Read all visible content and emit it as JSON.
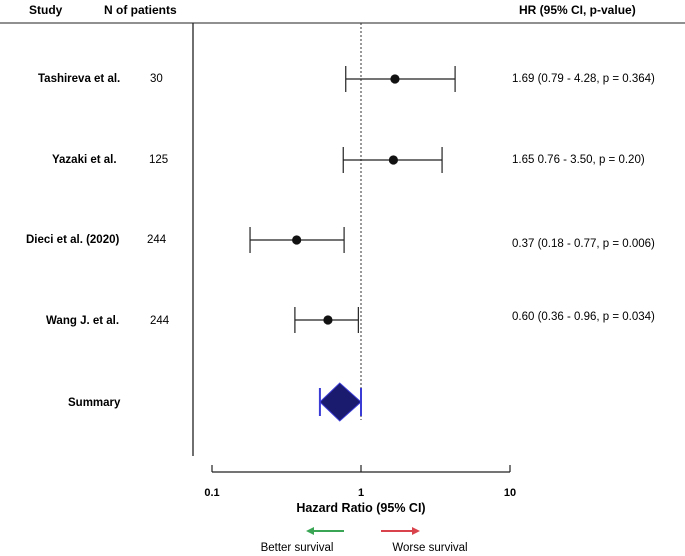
{
  "headers": {
    "study": "Study",
    "n": "N of patients",
    "hr": "HR (95% CI, p-value)"
  },
  "chart_data": {
    "type": "forest",
    "scale": "log",
    "xlim": [
      0.1,
      10
    ],
    "ticks": [
      {
        "value": 0.1,
        "label": "0.1"
      },
      {
        "value": 1,
        "label": "1"
      },
      {
        "value": 10,
        "label": "10"
      }
    ],
    "xlabel": "Hazard Ratio (95% CI)",
    "reference_line": 1,
    "studies": [
      {
        "name": "Tashireva et al.",
        "n": "30",
        "hr": 1.69,
        "lower": 0.79,
        "upper": 4.28,
        "label": "1.69 (0.79 - 4.28, p = 0.364)"
      },
      {
        "name": "Yazaki et al.",
        "n": "125",
        "hr": 1.65,
        "lower": 0.76,
        "upper": 3.5,
        "label": "1.65  0.76 - 3.50, p = 0.20)"
      },
      {
        "name": "Dieci et al. (2020)",
        "n": "244",
        "hr": 0.37,
        "lower": 0.18,
        "upper": 0.77,
        "label": "0.37 (0.18 - 0.77, p = 0.006)"
      },
      {
        "name": "Wang J. et al.",
        "n": "244",
        "hr": 0.6,
        "lower": 0.36,
        "upper": 0.96,
        "label": "0.60 (0.36 - 0.96, p = 0.034)"
      }
    ],
    "summary": {
      "name": "Summary",
      "hr": 0.72,
      "lower": 0.53,
      "upper": 1.0
    },
    "legend": {
      "left": {
        "label": "Better survival",
        "color": "#3aa655",
        "direction": "left"
      },
      "right": {
        "label": "Worse survival",
        "color": "#d9434b",
        "direction": "right"
      }
    }
  },
  "colors": {
    "point": "#111111",
    "line": "#222222",
    "summary_fill": "#1a1a6e",
    "summary_edge": "#3b3bd6"
  }
}
